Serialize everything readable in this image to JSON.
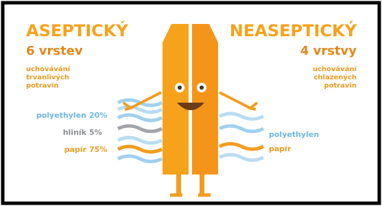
{
  "left": {
    "title": "ASEPTICKÝ",
    "layers_count": "6 vrstev",
    "description": [
      "uchovávání",
      "trvanlivých",
      "potravin"
    ],
    "materials": [
      {
        "name": "polyethylen",
        "share": "20%"
      },
      {
        "name": "hliník",
        "share": "5%"
      },
      {
        "name": "papír",
        "share": "75%"
      }
    ]
  },
  "right": {
    "title": "NEASEPTICKÝ",
    "layers_count": "4 vrstvy",
    "description": [
      "uchovávání",
      "chlazených",
      "potravin"
    ],
    "materials": [
      {
        "name": "polyethylen"
      },
      {
        "name": "papír"
      }
    ]
  }
}
